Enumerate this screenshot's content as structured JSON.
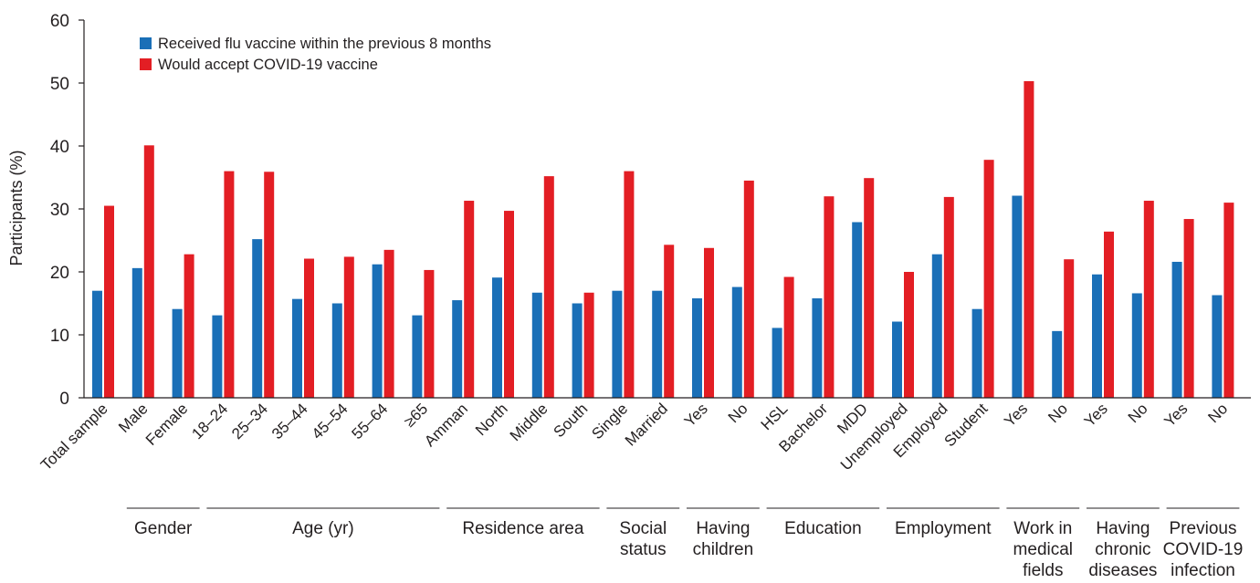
{
  "chart_data": {
    "type": "bar",
    "ylabel": "Participants (%)",
    "ylim": [
      0,
      60
    ],
    "yticks": [
      0,
      10,
      20,
      30,
      40,
      50,
      60
    ],
    "grid": false,
    "legend_position": "top-left",
    "categories": [
      "Total sample",
      "Male",
      "Female",
      "18–24",
      "25–34",
      "35–44",
      "45–54",
      "55–64",
      "≥65",
      "Amman",
      "North",
      "Middle",
      "South",
      "Single",
      "Married",
      "Yes",
      "No",
      "HSL",
      "Bachelor",
      "MDD",
      "Unemployed",
      "Employed",
      "Student",
      "Yes",
      "No",
      "Yes",
      "No",
      "Yes",
      "No"
    ],
    "series": [
      {
        "name": "Received flu vaccine within the previous 8 months",
        "color": "#1a6fb7",
        "values": [
          17.0,
          20.6,
          14.1,
          13.1,
          25.2,
          15.7,
          15.0,
          21.2,
          13.1,
          15.5,
          19.1,
          16.7,
          15.0,
          17.0,
          17.0,
          15.8,
          17.6,
          11.1,
          15.8,
          27.9,
          12.1,
          22.8,
          14.1,
          32.1,
          10.6,
          19.6,
          16.6,
          21.6,
          16.3
        ]
      },
      {
        "name": "Would accept COVID-19 vaccine",
        "color": "#e31e24",
        "values": [
          30.5,
          40.1,
          22.8,
          36.0,
          35.9,
          22.1,
          22.4,
          23.5,
          20.3,
          31.3,
          29.7,
          35.2,
          16.7,
          36.0,
          24.3,
          23.8,
          34.5,
          19.2,
          32.0,
          34.9,
          20.0,
          31.9,
          37.8,
          50.3,
          22.0,
          26.4,
          31.3,
          28.4,
          31.0
        ]
      }
    ],
    "groups": [
      {
        "label": [
          "Gender"
        ],
        "start": 1,
        "end": 2
      },
      {
        "label": [
          "Age (yr)"
        ],
        "start": 3,
        "end": 8
      },
      {
        "label": [
          "Residence area"
        ],
        "start": 9,
        "end": 12
      },
      {
        "label": [
          "Social",
          "status"
        ],
        "start": 13,
        "end": 14
      },
      {
        "label": [
          "Having",
          "children"
        ],
        "start": 15,
        "end": 16
      },
      {
        "label": [
          "Education"
        ],
        "start": 17,
        "end": 19
      },
      {
        "label": [
          "Employment"
        ],
        "start": 20,
        "end": 22
      },
      {
        "label": [
          "Work in",
          "medical",
          "fields"
        ],
        "start": 23,
        "end": 24
      },
      {
        "label": [
          "Having",
          "chronic",
          "diseases"
        ],
        "start": 25,
        "end": 26
      },
      {
        "label": [
          "Previous",
          "COVID-19",
          "infection"
        ],
        "start": 27,
        "end": 28
      }
    ]
  }
}
